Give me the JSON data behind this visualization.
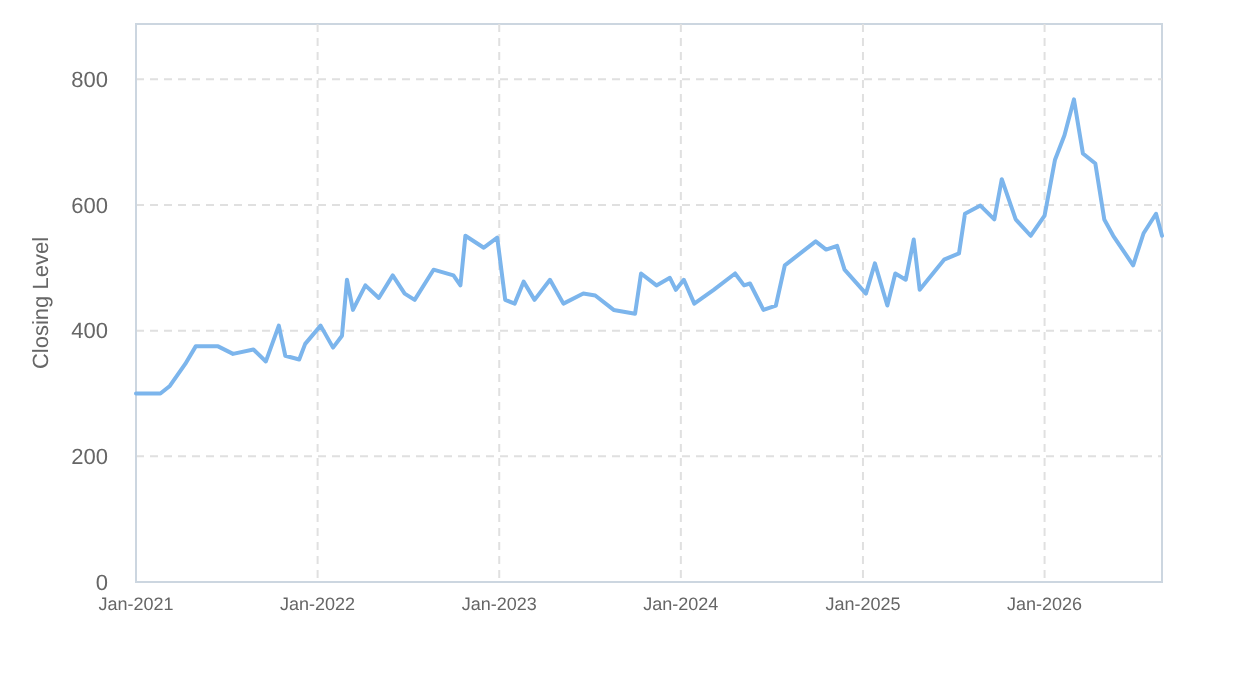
{
  "chart_data": {
    "type": "line",
    "ylabel": "Closing Level",
    "x": [
      "2021-01-01",
      "2021-02-19",
      "2021-03-10",
      "2021-04-10",
      "2021-05-01",
      "2021-06-15",
      "2021-07-15",
      "2021-08-25",
      "2021-09-19",
      "2021-10-15",
      "2021-10-28",
      "2021-11-25",
      "2021-12-07",
      "2022-01-07",
      "2022-02-01",
      "2022-02-19",
      "2022-03-01",
      "2022-03-13",
      "2022-04-07",
      "2022-05-04",
      "2022-06-01",
      "2022-06-25",
      "2022-07-15",
      "2022-08-22",
      "2022-10-01",
      "2022-10-15",
      "2022-10-25",
      "2022-12-01",
      "2022-12-28",
      "2023-01-13",
      "2023-02-01",
      "2023-02-19",
      "2023-03-13",
      "2023-04-13",
      "2023-05-10",
      "2023-06-19",
      "2023-07-13",
      "2023-08-19",
      "2023-10-01",
      "2023-10-13",
      "2023-11-13",
      "2023-12-10",
      "2023-12-22",
      "2024-01-07",
      "2024-01-28",
      "2024-03-07",
      "2024-04-19",
      "2024-05-07",
      "2024-05-19",
      "2024-06-15",
      "2024-07-10",
      "2024-07-28",
      "2024-09-28",
      "2024-10-19",
      "2024-11-10",
      "2024-11-25",
      "2025-01-07",
      "2025-01-25",
      "2025-02-19",
      "2025-03-07",
      "2025-03-28",
      "2025-04-13",
      "2025-04-25",
      "2025-06-13",
      "2025-07-13",
      "2025-07-25",
      "2025-08-25",
      "2025-09-22",
      "2025-10-07",
      "2025-11-04",
      "2025-12-04",
      "2026-01-01",
      "2026-01-22",
      "2026-02-10",
      "2026-03-01",
      "2026-03-19",
      "2026-04-13",
      "2026-05-01",
      "2026-05-19",
      "2026-06-28",
      "2026-07-19",
      "2026-08-13",
      "2026-08-25"
    ],
    "series": [
      {
        "color": "#7cb5ec",
        "values": [
          300,
          300,
          312,
          347,
          375,
          375,
          363,
          370,
          351,
          408,
          360,
          354,
          379,
          408,
          373,
          392,
          481,
          433,
          472,
          452,
          488,
          459,
          449,
          497,
          488,
          472,
          551,
          532,
          548,
          449,
          443,
          478,
          449,
          481,
          443,
          459,
          456,
          433,
          427,
          491,
          472,
          484,
          465,
          481,
          443,
          465,
          491,
          472,
          475,
          433,
          440,
          504,
          542,
          529,
          535,
          497,
          459,
          507,
          440,
          491,
          481,
          545,
          465,
          513,
          523,
          586,
          599,
          577,
          641,
          577,
          551,
          583,
          672,
          711,
          768,
          682,
          666,
          577,
          551,
          504,
          555,
          586,
          551
        ]
      }
    ],
    "xlim": [
      "2021-01-01",
      "2026-08-25"
    ],
    "xticks": [
      {
        "value": "2021-01-01",
        "label": "Jan-2021"
      },
      {
        "value": "2022-01-01",
        "label": "Jan-2022"
      },
      {
        "value": "2023-01-01",
        "label": "Jan-2023"
      },
      {
        "value": "2024-01-01",
        "label": "Jan-2024"
      },
      {
        "value": "2025-01-01",
        "label": "Jan-2025"
      },
      {
        "value": "2026-01-01",
        "label": "Jan-2026"
      }
    ],
    "ylim": [
      0,
      888
    ],
    "yticks": [
      0,
      200,
      400,
      600,
      800
    ],
    "grid": true,
    "line_style": "solid",
    "marker": "none"
  }
}
